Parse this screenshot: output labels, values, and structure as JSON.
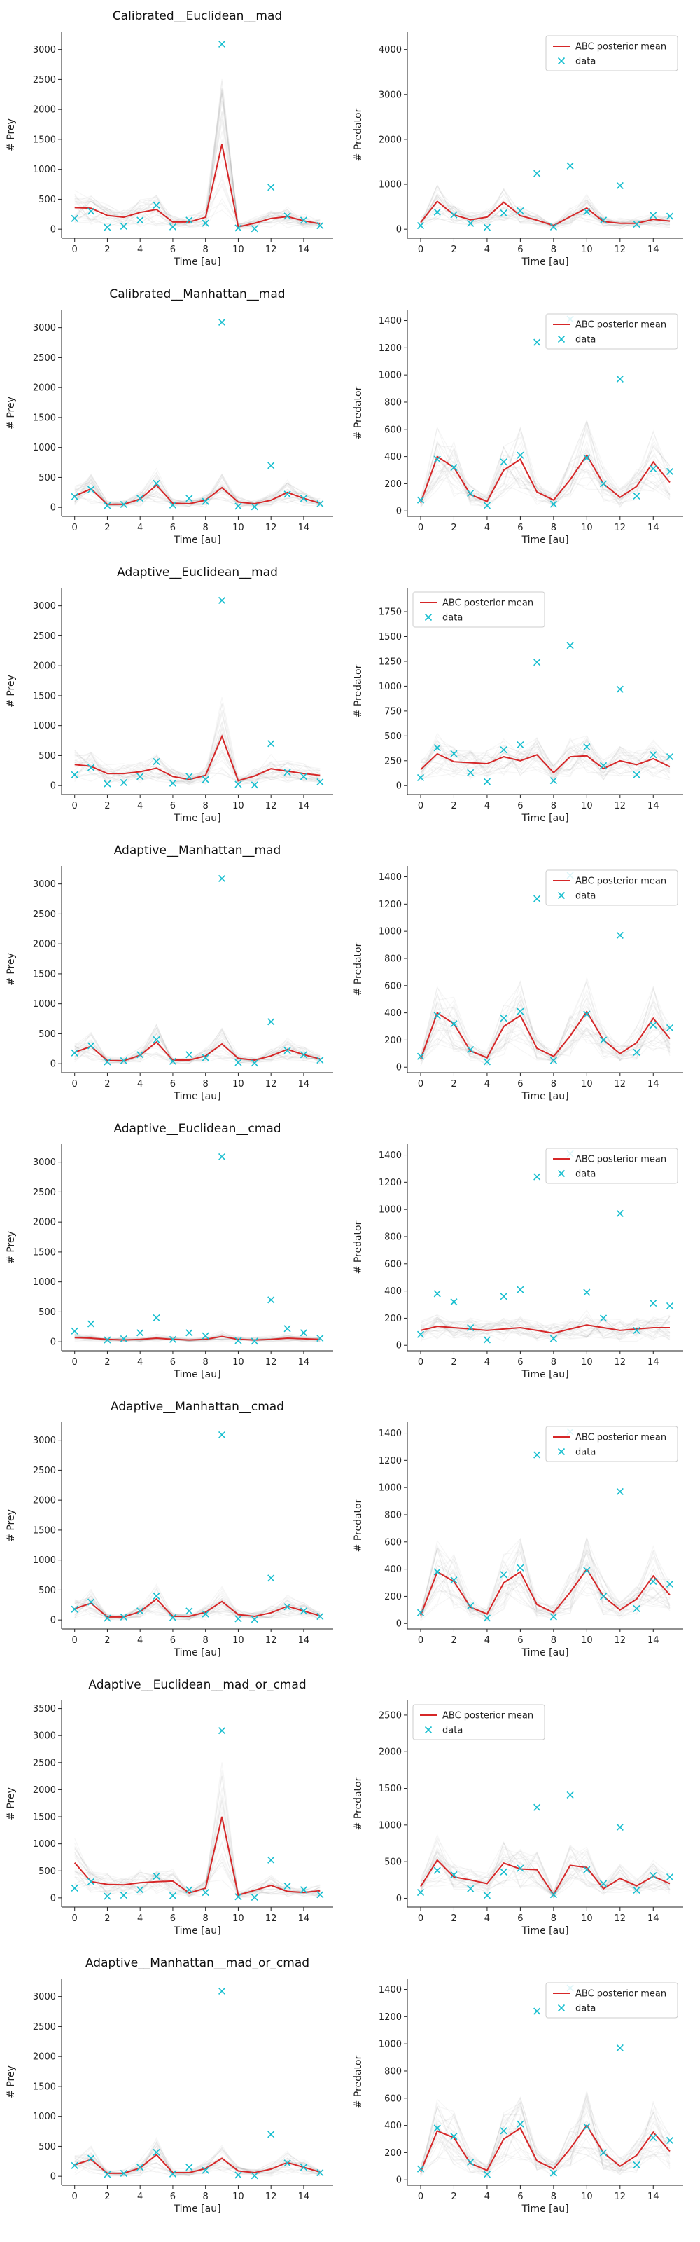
{
  "x_ticks": [
    0,
    2,
    4,
    6,
    8,
    10,
    12,
    14
  ],
  "xlabel": "Time [au]",
  "legend": {
    "mean_label": "ABC posterior mean",
    "data_label": "data"
  },
  "colors": {
    "mean": "#d62728",
    "data": "#17becf",
    "samples": "#9a9a9a"
  },
  "data": {
    "x": [
      0,
      1,
      2,
      3,
      4,
      5,
      6,
      7,
      8,
      9,
      10,
      11,
      12,
      13,
      14,
      15
    ],
    "prey": [
      180,
      300,
      30,
      50,
      150,
      400,
      40,
      150,
      100,
      3090,
      20,
      10,
      700,
      220,
      150,
      60
    ],
    "predator": [
      80,
      380,
      320,
      130,
      40,
      360,
      410,
      1240,
      50,
      1410,
      390,
      200,
      970,
      110,
      310,
      290
    ]
  },
  "chart_data": [
    {
      "type": "line",
      "title": "Calibrated__Euclidean__mad",
      "ylabel": "# Prey",
      "ylim": [
        -150,
        3300
      ],
      "yticks": [
        0,
        500,
        1000,
        1500,
        2000,
        2500,
        3000
      ],
      "legend": false,
      "series": [
        {
          "name": "ABC posterior mean",
          "values": [
            360,
            350,
            230,
            200,
            280,
            330,
            120,
            120,
            200,
            1420,
            40,
            100,
            180,
            210,
            140,
            90
          ]
        },
        {
          "name": "data",
          "values": [
            180,
            300,
            30,
            50,
            150,
            400,
            40,
            150,
            100,
            3090,
            20,
            10,
            700,
            220,
            150,
            60
          ]
        }
      ]
    },
    {
      "type": "line",
      "title": "",
      "ylabel": "# Predator",
      "ylim": [
        -200,
        4400
      ],
      "yticks": [
        0,
        1000,
        2000,
        3000,
        4000
      ],
      "legend": "top-right",
      "series": [
        {
          "name": "ABC posterior mean",
          "values": [
            150,
            620,
            320,
            210,
            270,
            600,
            300,
            200,
            80,
            280,
            470,
            170,
            130,
            130,
            220,
            180
          ]
        },
        {
          "name": "data",
          "values": [
            80,
            380,
            320,
            130,
            40,
            360,
            410,
            1240,
            50,
            1410,
            390,
            200,
            970,
            110,
            310,
            290
          ]
        }
      ]
    },
    {
      "type": "line",
      "title": "Calibrated__Manhattan__mad",
      "ylabel": "# Prey",
      "ylim": [
        -150,
        3300
      ],
      "yticks": [
        0,
        500,
        1000,
        1500,
        2000,
        2500,
        3000
      ],
      "legend": false,
      "series": [
        {
          "name": "ABC posterior mean",
          "values": [
            190,
            310,
            50,
            50,
            140,
            370,
            70,
            60,
            120,
            330,
            90,
            60,
            120,
            250,
            150,
            70
          ]
        },
        {
          "name": "data",
          "values": [
            180,
            300,
            30,
            50,
            150,
            400,
            40,
            150,
            100,
            3090,
            20,
            10,
            700,
            220,
            150,
            60
          ]
        }
      ]
    },
    {
      "type": "line",
      "title": "",
      "ylabel": "# Predator",
      "ylim": [
        -40,
        1480
      ],
      "yticks": [
        0,
        200,
        400,
        600,
        800,
        1000,
        1200,
        1400
      ],
      "legend": "top-right",
      "series": [
        {
          "name": "ABC posterior mean",
          "values": [
            60,
            400,
            320,
            120,
            70,
            300,
            380,
            140,
            80,
            230,
            410,
            200,
            100,
            180,
            360,
            210
          ]
        },
        {
          "name": "data",
          "values": [
            80,
            380,
            320,
            130,
            40,
            360,
            410,
            1240,
            50,
            1410,
            390,
            200,
            970,
            110,
            310,
            290
          ]
        }
      ]
    },
    {
      "type": "line",
      "title": "Adaptive__Euclidean__mad",
      "ylabel": "# Prey",
      "ylim": [
        -150,
        3300
      ],
      "yticks": [
        0,
        500,
        1000,
        1500,
        2000,
        2500,
        3000
      ],
      "legend": false,
      "series": [
        {
          "name": "ABC posterior mean",
          "values": [
            350,
            320,
            200,
            200,
            230,
            290,
            150,
            100,
            170,
            820,
            80,
            160,
            280,
            240,
            200,
            170
          ]
        },
        {
          "name": "data",
          "values": [
            180,
            300,
            30,
            50,
            150,
            400,
            40,
            150,
            100,
            3090,
            20,
            10,
            700,
            220,
            150,
            60
          ]
        }
      ]
    },
    {
      "type": "line",
      "title": "",
      "ylabel": "# Predator",
      "ylim": [
        -90,
        1990
      ],
      "yticks": [
        0,
        250,
        500,
        750,
        1000,
        1250,
        1500,
        1750
      ],
      "legend": "top-left",
      "series": [
        {
          "name": "ABC posterior mean",
          "values": [
            160,
            320,
            240,
            230,
            220,
            290,
            250,
            310,
            130,
            290,
            300,
            170,
            250,
            210,
            270,
            190
          ]
        },
        {
          "name": "data",
          "values": [
            80,
            380,
            320,
            130,
            40,
            360,
            410,
            1240,
            50,
            1410,
            390,
            200,
            970,
            110,
            310,
            290
          ]
        }
      ]
    },
    {
      "type": "line",
      "title": "Adaptive__Manhattan__mad",
      "ylabel": "# Prey",
      "ylim": [
        -150,
        3300
      ],
      "yticks": [
        0,
        500,
        1000,
        1500,
        2000,
        2500,
        3000
      ],
      "legend": false,
      "series": [
        {
          "name": "ABC posterior mean",
          "values": [
            190,
            290,
            50,
            50,
            140,
            360,
            60,
            60,
            130,
            330,
            90,
            60,
            130,
            240,
            150,
            80
          ]
        },
        {
          "name": "data",
          "values": [
            180,
            300,
            30,
            50,
            150,
            400,
            40,
            150,
            100,
            3090,
            20,
            10,
            700,
            220,
            150,
            60
          ]
        }
      ]
    },
    {
      "type": "line",
      "title": "",
      "ylabel": "# Predator",
      "ylim": [
        -40,
        1480
      ],
      "yticks": [
        0,
        200,
        400,
        600,
        800,
        1000,
        1200,
        1400
      ],
      "legend": "top-right",
      "series": [
        {
          "name": "ABC posterior mean",
          "values": [
            60,
            400,
            320,
            120,
            70,
            300,
            380,
            140,
            80,
            230,
            410,
            200,
            100,
            180,
            360,
            210
          ]
        },
        {
          "name": "data",
          "values": [
            80,
            380,
            320,
            130,
            40,
            360,
            410,
            1240,
            50,
            1410,
            390,
            200,
            970,
            110,
            310,
            290
          ]
        }
      ]
    },
    {
      "type": "line",
      "title": "Adaptive__Euclidean__cmad",
      "ylabel": "# Prey",
      "ylim": [
        -150,
        3300
      ],
      "yticks": [
        0,
        500,
        1000,
        1500,
        2000,
        2500,
        3000
      ],
      "legend": false,
      "series": [
        {
          "name": "ABC posterior mean",
          "values": [
            70,
            60,
            40,
            30,
            40,
            60,
            40,
            30,
            40,
            90,
            40,
            30,
            40,
            60,
            50,
            40
          ]
        },
        {
          "name": "data",
          "values": [
            180,
            300,
            30,
            50,
            150,
            400,
            40,
            150,
            100,
            3090,
            20,
            10,
            700,
            220,
            150,
            60
          ]
        }
      ]
    },
    {
      "type": "line",
      "title": "",
      "ylabel": "# Predator",
      "ylim": [
        -40,
        1480
      ],
      "yticks": [
        0,
        200,
        400,
        600,
        800,
        1000,
        1200,
        1400
      ],
      "legend": "top-right",
      "series": [
        {
          "name": "ABC posterior mean",
          "values": [
            110,
            140,
            130,
            120,
            110,
            120,
            130,
            110,
            90,
            120,
            150,
            130,
            110,
            120,
            130,
            130
          ]
        },
        {
          "name": "data",
          "values": [
            80,
            380,
            320,
            130,
            40,
            360,
            410,
            1240,
            50,
            1410,
            390,
            200,
            970,
            110,
            310,
            290
          ]
        }
      ]
    },
    {
      "type": "line",
      "title": "Adaptive__Manhattan__cmad",
      "ylabel": "# Prey",
      "ylim": [
        -150,
        3300
      ],
      "yticks": [
        0,
        500,
        1000,
        1500,
        2000,
        2500,
        3000
      ],
      "legend": false,
      "series": [
        {
          "name": "ABC posterior mean",
          "values": [
            190,
            280,
            50,
            50,
            140,
            350,
            60,
            60,
            130,
            310,
            90,
            60,
            120,
            230,
            150,
            70
          ]
        },
        {
          "name": "data",
          "values": [
            180,
            300,
            30,
            50,
            150,
            400,
            40,
            150,
            100,
            3090,
            20,
            10,
            700,
            220,
            150,
            60
          ]
        }
      ]
    },
    {
      "type": "line",
      "title": "",
      "ylabel": "# Predator",
      "ylim": [
        -40,
        1480
      ],
      "yticks": [
        0,
        200,
        400,
        600,
        800,
        1000,
        1200,
        1400
      ],
      "legend": "top-right",
      "series": [
        {
          "name": "ABC posterior mean",
          "values": [
            60,
            380,
            310,
            120,
            70,
            300,
            380,
            140,
            80,
            230,
            400,
            200,
            100,
            180,
            350,
            210
          ]
        },
        {
          "name": "data",
          "values": [
            80,
            380,
            320,
            130,
            40,
            360,
            410,
            1240,
            50,
            1410,
            390,
            200,
            970,
            110,
            310,
            290
          ]
        }
      ]
    },
    {
      "type": "line",
      "title": "Adaptive__Euclidean__mad_or_cmad",
      "ylabel": "# Prey",
      "ylim": [
        -170,
        3650
      ],
      "yticks": [
        0,
        500,
        1000,
        1500,
        2000,
        2500,
        3000,
        3500
      ],
      "legend": false,
      "series": [
        {
          "name": "ABC posterior mean",
          "values": [
            650,
            300,
            250,
            240,
            280,
            300,
            310,
            90,
            180,
            1500,
            50,
            140,
            230,
            120,
            100,
            130
          ]
        },
        {
          "name": "data",
          "values": [
            180,
            300,
            30,
            50,
            150,
            400,
            40,
            150,
            100,
            3090,
            20,
            10,
            700,
            220,
            150,
            60
          ]
        }
      ]
    },
    {
      "type": "line",
      "title": "",
      "ylabel": "# Predator",
      "ylim": [
        -120,
        2700
      ],
      "yticks": [
        0,
        500,
        1000,
        1500,
        2000,
        2500
      ],
      "legend": "top-left",
      "series": [
        {
          "name": "ABC posterior mean",
          "values": [
            160,
            520,
            290,
            250,
            200,
            480,
            400,
            390,
            50,
            450,
            420,
            130,
            270,
            170,
            300,
            200
          ]
        },
        {
          "name": "data",
          "values": [
            80,
            380,
            320,
            130,
            40,
            360,
            410,
            1240,
            50,
            1410,
            390,
            200,
            970,
            110,
            310,
            290
          ]
        }
      ]
    },
    {
      "type": "line",
      "title": "Adaptive__Manhattan__mad_or_cmad",
      "ylabel": "# Prey",
      "ylim": [
        -150,
        3300
      ],
      "yticks": [
        0,
        500,
        1000,
        1500,
        2000,
        2500,
        3000
      ],
      "legend": false,
      "series": [
        {
          "name": "ABC posterior mean",
          "values": [
            190,
            280,
            50,
            50,
            140,
            360,
            60,
            60,
            130,
            300,
            90,
            60,
            120,
            230,
            150,
            70
          ]
        },
        {
          "name": "data",
          "values": [
            180,
            300,
            30,
            50,
            150,
            400,
            40,
            150,
            100,
            3090,
            20,
            10,
            700,
            220,
            150,
            60
          ]
        }
      ]
    },
    {
      "type": "line",
      "title": "",
      "ylabel": "# Predator",
      "ylim": [
        -40,
        1480
      ],
      "yticks": [
        0,
        200,
        400,
        600,
        800,
        1000,
        1200,
        1400
      ],
      "legend": "top-right",
      "series": [
        {
          "name": "ABC posterior mean",
          "values": [
            60,
            360,
            310,
            120,
            70,
            300,
            380,
            140,
            80,
            230,
            400,
            200,
            100,
            180,
            350,
            210
          ]
        },
        {
          "name": "data",
          "values": [
            80,
            380,
            320,
            130,
            40,
            360,
            410,
            1240,
            50,
            1410,
            390,
            200,
            970,
            110,
            310,
            290
          ]
        }
      ]
    }
  ]
}
